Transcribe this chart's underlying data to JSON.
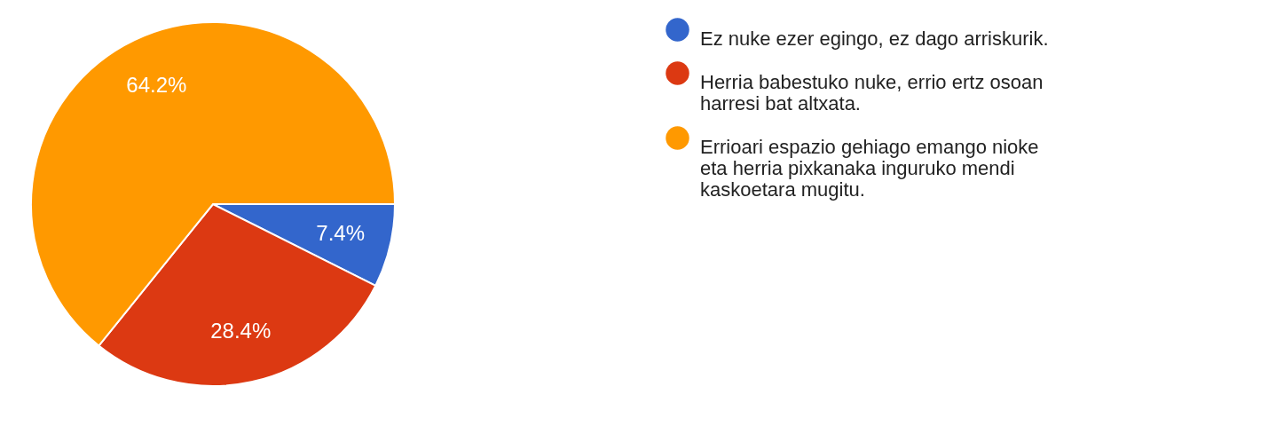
{
  "chart_data": {
    "type": "pie",
    "categories": [
      "Ez nuke ezer egingo, ez dago arriskurik.",
      "Herria babestuko nuke, errio ertz osoan harresi bat altxata.",
      "Errioari espazio gehiago emango nioke eta herria pixkanaka inguruko mendi kaskoetara mugitu."
    ],
    "values": [
      7.4,
      28.4,
      64.2
    ],
    "colors": [
      "#3366cc",
      "#dc3912",
      "#ff9900"
    ],
    "value_labels": [
      "7.4%",
      "28.4%",
      "64.2%"
    ],
    "legend": "right"
  }
}
